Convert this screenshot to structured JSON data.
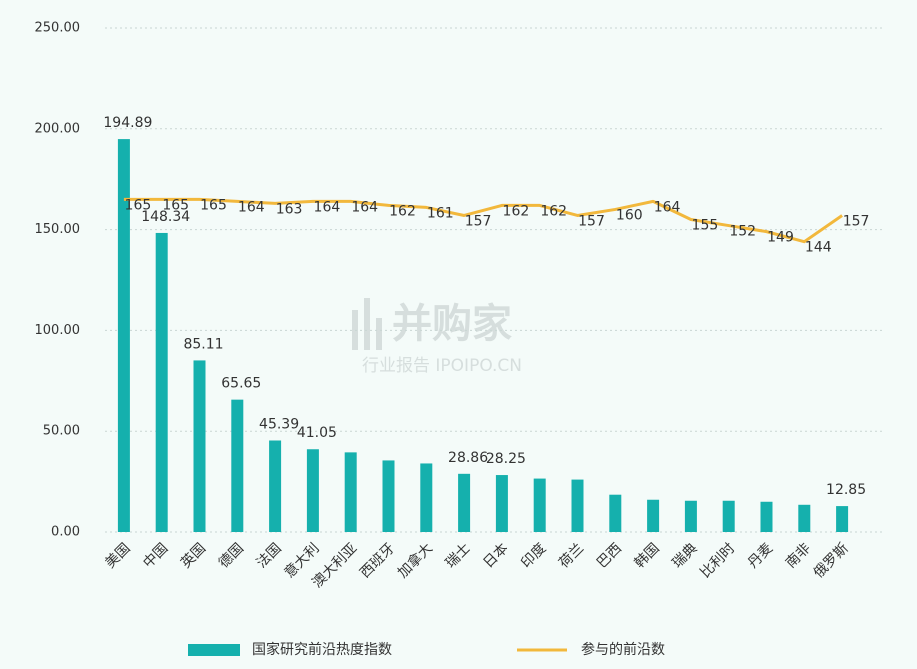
{
  "chart_data": {
    "type": "bar_line",
    "categories": [
      "美国",
      "中国",
      "英国",
      "德国",
      "法国",
      "意大利",
      "澳大利亚",
      "西班牙",
      "加拿大",
      "瑞士",
      "日本",
      "印度",
      "荷兰",
      "巴西",
      "韩国",
      "瑞典",
      "比利时",
      "丹麦",
      "南非",
      "俄罗斯"
    ],
    "series": [
      {
        "name": "国家研究前沿热度指数",
        "type": "bar",
        "color": "#15b0ad",
        "values": [
          194.89,
          148.34,
          85.11,
          65.65,
          45.39,
          41.05,
          39.5,
          35.5,
          34,
          28.86,
          28.25,
          26.5,
          26,
          18.5,
          16,
          15.5,
          15.5,
          15,
          13.5,
          12.85
        ],
        "value_labels": [
          "194.89",
          "148.34",
          "85.11",
          "65.65",
          "45.39",
          "41.05",
          null,
          null,
          null,
          "28.86",
          "28.25",
          null,
          null,
          null,
          null,
          null,
          null,
          null,
          null,
          "12.85"
        ]
      },
      {
        "name": "参与的前沿数",
        "type": "line",
        "color": "#f2b83c",
        "values": [
          165,
          165,
          165,
          164,
          163,
          164,
          164,
          162,
          161,
          157,
          162,
          162,
          157,
          160,
          164,
          155,
          152,
          149,
          144,
          157
        ]
      }
    ],
    "ylim": [
      0,
      250
    ],
    "yticks": [
      {
        "value": 0,
        "label": "0.00"
      },
      {
        "value": 50,
        "label": "50.00"
      },
      {
        "value": 100,
        "label": "100.00"
      },
      {
        "value": 150,
        "label": "150.00"
      },
      {
        "value": 200,
        "label": "200.00"
      },
      {
        "value": 250,
        "label": "250.00"
      }
    ],
    "grid": true,
    "legend": "bottom",
    "watermark": {
      "brand": "并购家",
      "tagline": "行业报告 IPOIPO.CN"
    }
  }
}
